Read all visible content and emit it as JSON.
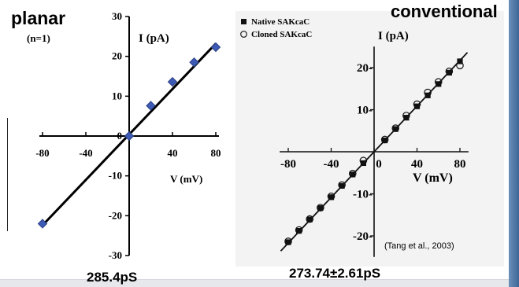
{
  "left_panel": {
    "label": "planar",
    "note": "(n=1)",
    "y_axis_label": "I (pA)",
    "x_axis_label": "V (mV)",
    "caption": "285.4pS"
  },
  "right_panel": {
    "label": "conventional",
    "legend": [
      "Native SAKcaC",
      "Cloned SAKcaC"
    ],
    "y_axis_label": "I (pA)",
    "x_axis_label": "V (mV)",
    "citation": "(Tang et al., 2003)",
    "caption": "273.74±2.61pS"
  },
  "chart_data": [
    {
      "type": "scatter",
      "title": "planar",
      "xlabel": "V (mV)",
      "ylabel": "I (pA)",
      "xlim": [
        -80,
        80
      ],
      "ylim": [
        -30,
        30
      ],
      "xticks": [
        -80,
        -40,
        0,
        40,
        80
      ],
      "yticks": [
        -30,
        -20,
        -10,
        0,
        10,
        20,
        30
      ],
      "series": [
        {
          "marker_color": "#3d5bb5",
          "x": [
            -80,
            0,
            20,
            40,
            60,
            80
          ],
          "y": [
            -22,
            0,
            7.6,
            13.6,
            18.5,
            22.3
          ]
        }
      ],
      "fit_line": {
        "x": [
          -80,
          80
        ],
        "y": [
          -22.4,
          23.2
        ]
      },
      "grid": false
    },
    {
      "type": "scatter",
      "title": "conventional",
      "xlabel": "V (mV)",
      "ylabel": "I (pA)",
      "xlim": [
        -90,
        90
      ],
      "ylim": [
        -25,
        25
      ],
      "xticks": [
        -80,
        -40,
        0,
        40,
        80
      ],
      "xtick_labels": [
        "-80",
        "-40",
        "0",
        "40",
        "80"
      ],
      "yticks": [
        -20,
        -10,
        10,
        20
      ],
      "ytick_labels": [
        "-20-",
        "-10-",
        "10-",
        "20-"
      ],
      "legend_position": "top-left",
      "series": [
        {
          "name": "Native SAKcaC",
          "marker": "filled-square",
          "x": [
            -80,
            -70,
            -60,
            -50,
            -40,
            -30,
            -20,
            -10,
            10,
            20,
            30,
            40,
            50,
            60,
            70,
            80
          ],
          "y": [
            -21.5,
            -18.8,
            -16.1,
            -13.4,
            -10.8,
            -8.1,
            -5.4,
            -2.7,
            2.7,
            5.4,
            8.1,
            10.8,
            13.4,
            16.1,
            18.8,
            21.5
          ]
        },
        {
          "name": "Cloned SAKcaC",
          "marker": "open-circle",
          "x": [
            -80,
            -70,
            -60,
            -50,
            -40,
            -30,
            -20,
            -10,
            10,
            20,
            30,
            40,
            50,
            60,
            70,
            80
          ],
          "y": [
            -21.3,
            -18.6,
            -16.0,
            -13.3,
            -10.6,
            -7.9,
            -5.2,
            -2.1,
            2.9,
            5.6,
            8.6,
            11.3,
            14.1,
            16.6,
            19.1,
            20.5
          ]
        }
      ],
      "fit_line": {
        "x": [
          -87,
          87
        ],
        "y": [
          -23.6,
          23.6
        ]
      },
      "grid": false
    }
  ]
}
